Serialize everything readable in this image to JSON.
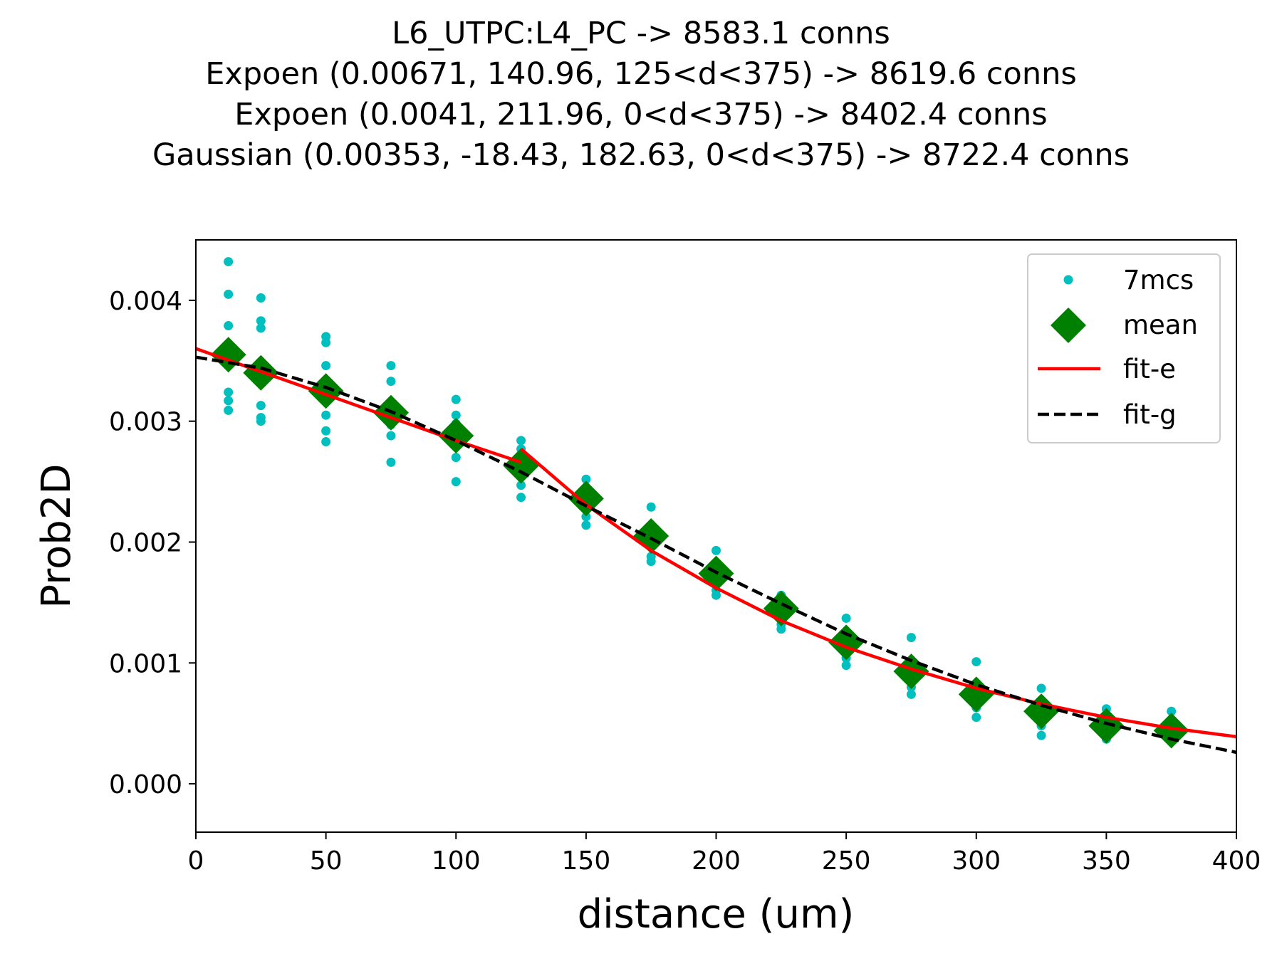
{
  "chart_data": {
    "type": "scatter",
    "title_lines": [
      "L6_UTPC:L4_PC -> 8583.1 conns",
      "Expoen (0.00671, 140.96, 125<d<375) -> 8619.6 conns",
      "Expoen (0.0041, 211.96, 0<d<375) -> 8402.4 conns",
      "Gaussian (0.00353, -18.43, 182.63, 0<d<375) -> 8722.4 conns"
    ],
    "xlabel": "distance (um)",
    "ylabel": "Prob2D",
    "xlim": [
      0,
      400
    ],
    "ylim": [
      -0.0004,
      0.0045
    ],
    "xticks": [
      0,
      50,
      100,
      150,
      200,
      250,
      300,
      350,
      400
    ],
    "xtick_labels": [
      "0",
      "50",
      "100",
      "150",
      "200",
      "250",
      "300",
      "350",
      "400"
    ],
    "yticks": [
      0.0,
      0.001,
      0.002,
      0.003,
      0.004
    ],
    "ytick_labels": [
      "0.000",
      "0.001",
      "0.002",
      "0.003",
      "0.004"
    ],
    "grid": false,
    "legend_position": "top-right",
    "series": [
      {
        "name": "7mcs",
        "kind": "points",
        "color": "#00bfbf",
        "points": [
          [
            12.5,
            0.00432
          ],
          [
            12.5,
            0.00405
          ],
          [
            12.5,
            0.00379
          ],
          [
            12.5,
            0.00355
          ],
          [
            12.5,
            0.00324
          ],
          [
            12.5,
            0.00317
          ],
          [
            12.5,
            0.00309
          ],
          [
            25,
            0.00402
          ],
          [
            25,
            0.00383
          ],
          [
            25,
            0.00377
          ],
          [
            25,
            0.00342
          ],
          [
            25,
            0.00313
          ],
          [
            25,
            0.00303
          ],
          [
            25,
            0.003
          ],
          [
            50,
            0.0037
          ],
          [
            50,
            0.00365
          ],
          [
            50,
            0.00346
          ],
          [
            50,
            0.00317
          ],
          [
            50,
            0.00305
          ],
          [
            50,
            0.00292
          ],
          [
            50,
            0.00283
          ],
          [
            75,
            0.00346
          ],
          [
            75,
            0.00333
          ],
          [
            75,
            0.00308
          ],
          [
            75,
            0.00303
          ],
          [
            75,
            0.00297
          ],
          [
            75,
            0.00288
          ],
          [
            75,
            0.00266
          ],
          [
            100,
            0.00318
          ],
          [
            100,
            0.00305
          ],
          [
            100,
            0.00298
          ],
          [
            100,
            0.00288
          ],
          [
            100,
            0.00282
          ],
          [
            100,
            0.0027
          ],
          [
            100,
            0.0025
          ],
          [
            125,
            0.00284
          ],
          [
            125,
            0.00277
          ],
          [
            125,
            0.00268
          ],
          [
            125,
            0.00262
          ],
          [
            125,
            0.00257
          ],
          [
            125,
            0.00247
          ],
          [
            125,
            0.00237
          ],
          [
            150,
            0.00252
          ],
          [
            150,
            0.00243
          ],
          [
            150,
            0.00238
          ],
          [
            150,
            0.00233
          ],
          [
            150,
            0.00228
          ],
          [
            150,
            0.00221
          ],
          [
            150,
            0.00214
          ],
          [
            175,
            0.00229
          ],
          [
            175,
            0.00212
          ],
          [
            175,
            0.00208
          ],
          [
            175,
            0.00204
          ],
          [
            175,
            0.00199
          ],
          [
            175,
            0.00188
          ],
          [
            175,
            0.00184
          ],
          [
            200,
            0.00193
          ],
          [
            200,
            0.00178
          ],
          [
            200,
            0.00175
          ],
          [
            200,
            0.00172
          ],
          [
            200,
            0.00168
          ],
          [
            200,
            0.0016
          ],
          [
            200,
            0.00156
          ],
          [
            225,
            0.00156
          ],
          [
            225,
            0.0015
          ],
          [
            225,
            0.00146
          ],
          [
            225,
            0.00143
          ],
          [
            225,
            0.00138
          ],
          [
            225,
            0.00132
          ],
          [
            225,
            0.00128
          ],
          [
            250,
            0.00137
          ],
          [
            250,
            0.00122
          ],
          [
            250,
            0.00118
          ],
          [
            250,
            0.00116
          ],
          [
            250,
            0.00112
          ],
          [
            250,
            0.00104
          ],
          [
            250,
            0.00098
          ],
          [
            275,
            0.00121
          ],
          [
            275,
            0.00098
          ],
          [
            275,
            0.00095
          ],
          [
            275,
            0.00092
          ],
          [
            275,
            0.00088
          ],
          [
            275,
            0.0008
          ],
          [
            275,
            0.00074
          ],
          [
            300,
            0.00101
          ],
          [
            300,
            0.00082
          ],
          [
            300,
            0.00078
          ],
          [
            300,
            0.00074
          ],
          [
            300,
            0.0007
          ],
          [
            300,
            0.00063
          ],
          [
            300,
            0.00055
          ],
          [
            325,
            0.00079
          ],
          [
            325,
            0.00066
          ],
          [
            325,
            0.00062
          ],
          [
            325,
            0.00059
          ],
          [
            325,
            0.00055
          ],
          [
            325,
            0.00048
          ],
          [
            325,
            0.0004
          ],
          [
            350,
            0.00062
          ],
          [
            350,
            0.00053
          ],
          [
            350,
            0.0005
          ],
          [
            350,
            0.00047
          ],
          [
            350,
            0.00044
          ],
          [
            350,
            0.0004
          ],
          [
            350,
            0.00037
          ],
          [
            375,
            0.0006
          ],
          [
            375,
            0.00052
          ],
          [
            375,
            0.00049
          ],
          [
            375,
            0.00046
          ],
          [
            375,
            0.00043
          ],
          [
            375,
            0.0004
          ],
          [
            375,
            0.00038
          ]
        ]
      },
      {
        "name": "mean",
        "kind": "diamonds",
        "color": "#008000",
        "points": [
          [
            12.5,
            0.00355
          ],
          [
            25,
            0.0034
          ],
          [
            50,
            0.00325
          ],
          [
            75,
            0.00307
          ],
          [
            100,
            0.00288
          ],
          [
            125,
            0.00263
          ],
          [
            150,
            0.00236
          ],
          [
            175,
            0.00205
          ],
          [
            200,
            0.00174
          ],
          [
            225,
            0.00145
          ],
          [
            250,
            0.00117
          ],
          [
            275,
            0.00093
          ],
          [
            300,
            0.00074
          ],
          [
            325,
            0.0006
          ],
          [
            350,
            0.00048
          ],
          [
            375,
            0.00044
          ]
        ]
      },
      {
        "name": "fit-e",
        "kind": "line",
        "color": "#ff0000",
        "segments": [
          [
            [
              0,
              0.0036
            ],
            [
              25,
              0.00341
            ],
            [
              50,
              0.00322
            ],
            [
              75,
              0.00303
            ],
            [
              100,
              0.00284
            ],
            [
              125,
              0.00266
            ]
          ],
          [
            [
              125,
              0.00277
            ],
            [
              150,
              0.00231
            ],
            [
              175,
              0.00193
            ],
            [
              200,
              0.00162
            ],
            [
              225,
              0.00135
            ],
            [
              250,
              0.00113
            ],
            [
              275,
              0.00095
            ],
            [
              300,
              0.00079
            ],
            [
              325,
              0.00066
            ],
            [
              350,
              0.00055
            ],
            [
              375,
              0.00046
            ],
            [
              400,
              0.00039
            ]
          ]
        ]
      },
      {
        "name": "fit-g",
        "kind": "dashed-line",
        "color": "#000000",
        "points": [
          [
            0,
            0.00353
          ],
          [
            25,
            0.00344
          ],
          [
            50,
            0.00328
          ],
          [
            75,
            0.00308
          ],
          [
            100,
            0.00284
          ],
          [
            125,
            0.00258
          ],
          [
            150,
            0.0023
          ],
          [
            175,
            0.00203
          ],
          [
            200,
            0.00175
          ],
          [
            225,
            0.00149
          ],
          [
            250,
            0.00124
          ],
          [
            275,
            0.00102
          ],
          [
            300,
            0.00082
          ],
          [
            325,
            0.00065
          ],
          [
            350,
            0.0005
          ],
          [
            375,
            0.00037
          ],
          [
            400,
            0.00026
          ]
        ]
      }
    ]
  }
}
